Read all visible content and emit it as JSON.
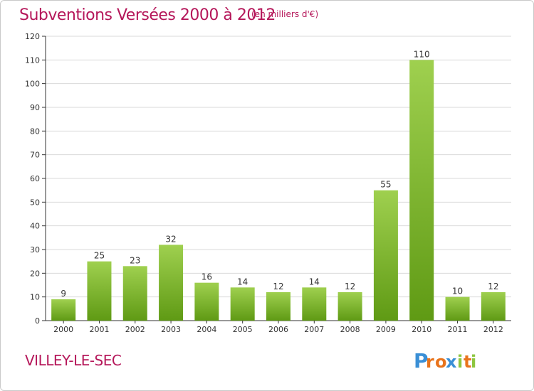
{
  "header": {
    "title": "Subventions Versées 2000 à 2012",
    "unit": "(en milliers d'€)"
  },
  "footer": {
    "town": "VILLEY-LE-SEC",
    "logo_text": "Proxiti",
    "logo_letters": [
      "P",
      "r",
      "o",
      "x",
      "i",
      "t",
      "i"
    ],
    "logo_colors": [
      "#3a8fd6",
      "#e8731b",
      "#e8731b",
      "#3a8fd6",
      "#8dc63f",
      "#e8731b",
      "#8dc63f"
    ]
  },
  "colors": {
    "title": "#b5175a",
    "bar_top": "#9fd04f",
    "bar_bottom": "#5f9a14",
    "grid": "#d9d9d9",
    "axis": "#333333"
  },
  "chart_data": {
    "type": "bar",
    "title": "Subventions Versées 2000 à 2012",
    "subtitle": "(en milliers d'€)",
    "xlabel": "",
    "ylabel": "",
    "categories": [
      "2000",
      "2001",
      "2002",
      "2003",
      "2004",
      "2005",
      "2006",
      "2007",
      "2008",
      "2009",
      "2010",
      "2011",
      "2012"
    ],
    "values": [
      9,
      25,
      23,
      32,
      16,
      14,
      12,
      14,
      12,
      55,
      110,
      10,
      12
    ],
    "ylim": [
      0,
      120
    ],
    "yticks": [
      0,
      10,
      20,
      30,
      40,
      50,
      60,
      70,
      80,
      90,
      100,
      110,
      120
    ],
    "grid": true,
    "data_labels": true
  }
}
